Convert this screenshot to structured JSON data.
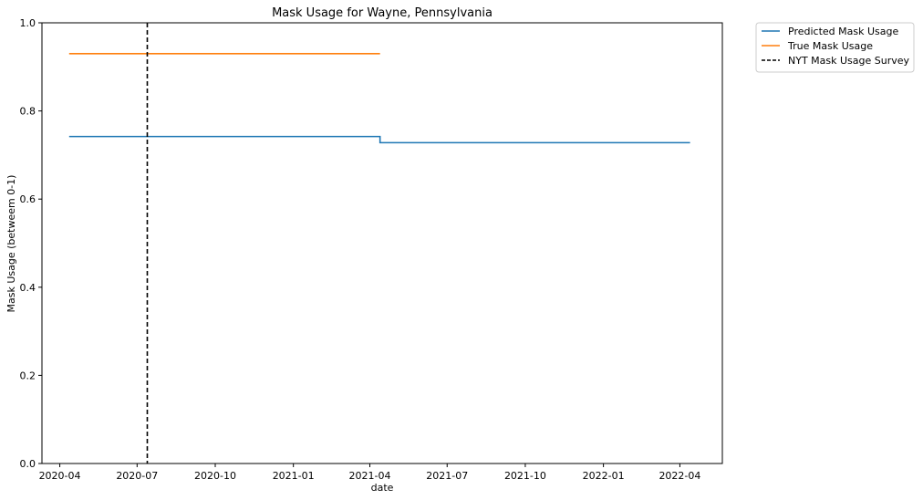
{
  "chart_data": {
    "type": "line",
    "title": "Mask Usage for Wayne, Pennsylvania",
    "xlabel": "date",
    "ylabel": "Mask Usage (betweem 0-1)",
    "ylim": [
      0,
      1
    ],
    "xlim": [
      "2020-03-11",
      "2022-05-21"
    ],
    "x_ticks": [
      "2020-04",
      "2020-07",
      "2020-10",
      "2021-01",
      "2021-04",
      "2021-07",
      "2021-10",
      "2022-01",
      "2022-04"
    ],
    "y_ticks": [
      "0.0",
      "0.2",
      "0.4",
      "0.6",
      "0.8",
      "1.0"
    ],
    "grid": false,
    "legend_position": "outside-top-right",
    "series": [
      {
        "name": "Predicted Mask Usage",
        "color": "#1f77b4",
        "style": "solid",
        "step": true,
        "points": [
          {
            "x": "2020-04-12",
            "y": 0.742
          },
          {
            "x": "2021-04-12",
            "y": 0.742
          },
          {
            "x": "2021-04-13",
            "y": 0.728
          },
          {
            "x": "2022-04-13",
            "y": 0.728
          }
        ]
      },
      {
        "name": "True Mask Usage",
        "color": "#ff7f0e",
        "style": "solid",
        "step": false,
        "points": [
          {
            "x": "2020-04-12",
            "y": 0.93
          },
          {
            "x": "2021-04-13",
            "y": 0.93
          }
        ]
      },
      {
        "name": "NYT Mask Usage Survey",
        "color": "#000000",
        "style": "dashed",
        "type": "vline",
        "x": "2020-07-13"
      }
    ]
  }
}
